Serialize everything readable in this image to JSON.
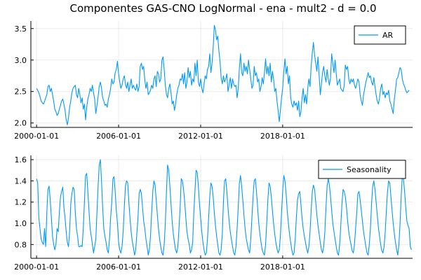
{
  "chart_data": [
    {
      "type": "line",
      "title": "Componentes GAS-CNO LogNormal - ena - mult2 - d = 0.0",
      "xlabel": "",
      "ylabel": "",
      "x_start": "2000-01",
      "frequency": "monthly",
      "xticks": [
        "2000-01-01",
        "2006-01-01",
        "2012-01-01",
        "2018-01-01"
      ],
      "yticks": [
        2.0,
        2.5,
        3.0,
        3.5
      ],
      "ytick_labels": [
        "2.0",
        "2.5",
        "3.0",
        "3.5"
      ],
      "ylim": [
        1.93,
        3.62
      ],
      "grid": true,
      "legend_position": "top-right",
      "series": [
        {
          "name": "AR",
          "color": "#009AFA",
          "values": [
            2.55,
            2.52,
            2.48,
            2.42,
            2.35,
            2.32,
            2.3,
            2.34,
            2.4,
            2.45,
            2.58,
            2.6,
            2.5,
            2.55,
            2.45,
            2.35,
            2.22,
            2.18,
            2.12,
            2.15,
            2.22,
            2.28,
            2.35,
            2.38,
            2.3,
            2.2,
            2.05,
            1.97,
            2.08,
            2.25,
            2.35,
            2.48,
            2.55,
            2.58,
            2.6,
            2.45,
            2.4,
            2.55,
            2.45,
            2.32,
            2.4,
            2.22,
            2.3,
            2.05,
            2.25,
            2.38,
            2.45,
            2.55,
            2.5,
            2.6,
            2.48,
            2.38,
            2.15,
            2.28,
            2.42,
            2.58,
            2.65,
            2.55,
            2.4,
            2.35,
            2.28,
            2.3,
            2.25,
            2.38,
            2.45,
            2.55,
            2.7,
            2.62,
            2.65,
            2.8,
            2.85,
            2.98,
            2.78,
            2.65,
            2.55,
            2.6,
            2.7,
            2.75,
            2.62,
            2.55,
            2.65,
            2.5,
            2.6,
            2.7,
            2.55,
            2.6,
            2.55,
            2.52,
            2.62,
            2.5,
            2.58,
            2.9,
            2.95,
            2.85,
            2.9,
            2.68,
            2.55,
            2.65,
            2.45,
            2.48,
            2.52,
            2.6,
            2.55,
            2.7,
            2.75,
            2.58,
            2.82,
            2.78,
            2.65,
            2.7,
            3.0,
            3.05,
            2.85,
            2.6,
            2.45,
            2.4,
            2.55,
            2.62,
            2.48,
            2.3,
            2.35,
            2.2,
            2.3,
            2.45,
            2.55,
            2.6,
            2.7,
            2.68,
            2.78,
            2.62,
            2.8,
            2.55,
            2.65,
            2.88,
            2.72,
            2.82,
            2.6,
            2.7,
            2.65,
            2.95,
            2.75,
            3.0,
            2.65,
            2.58,
            2.7,
            2.55,
            2.48,
            2.62,
            2.75,
            2.7,
            2.85,
            2.9,
            3.1,
            2.8,
            2.95,
            3.2,
            3.55,
            3.48,
            3.32,
            3.38,
            3.15,
            2.98,
            2.72,
            2.62,
            2.75,
            2.65,
            2.7,
            2.78,
            2.5,
            2.6,
            2.72,
            2.55,
            2.7,
            2.62,
            2.58,
            2.6,
            2.4,
            2.55,
            2.88,
            3.1,
            2.8,
            2.75,
            2.95,
            2.82,
            2.9,
            2.78,
            3.0,
            2.85,
            2.7,
            2.55,
            2.6,
            2.9,
            2.75,
            2.8,
            2.65,
            2.7,
            2.5,
            2.58,
            2.72,
            2.62,
            2.8,
            3.02,
            2.78,
            2.9,
            2.75,
            2.95,
            2.65,
            2.82,
            2.7,
            2.5,
            2.55,
            2.35,
            2.2,
            2.02,
            2.2,
            2.4,
            2.55,
            2.82,
            3.02,
            2.78,
            2.9,
            2.62,
            2.75,
            2.4,
            2.3,
            2.25,
            2.35,
            2.28,
            2.32,
            2.2,
            2.35,
            2.1,
            2.18,
            2.4,
            2.55,
            2.32,
            2.45,
            2.3,
            2.55,
            2.7,
            2.58,
            2.9,
            3.12,
            3.28,
            3.08,
            2.95,
            2.82,
            3.05,
            2.75,
            2.45,
            2.62,
            2.8,
            2.9,
            2.75,
            2.65,
            2.85,
            2.7,
            2.6,
            2.72,
            3.1,
            2.95,
            2.8,
            3.0,
            2.78,
            2.6,
            2.65,
            2.7,
            2.55,
            2.52,
            2.5,
            2.6,
            2.92,
            2.85,
            2.9,
            2.7,
            2.62,
            2.7,
            2.65,
            2.7,
            2.6,
            2.55,
            2.62,
            2.7,
            2.65,
            2.45,
            2.35,
            2.28,
            2.45,
            2.55,
            2.65,
            2.72,
            2.8,
            2.72,
            2.75,
            2.65,
            2.6,
            2.72,
            2.58,
            2.45,
            2.35,
            2.3,
            2.4,
            2.55,
            2.62,
            2.45,
            2.5,
            2.4,
            2.48,
            2.45,
            2.52,
            2.35,
            2.3,
            2.22,
            2.15,
            2.38,
            2.52,
            2.7,
            2.72,
            2.8,
            2.88,
            2.85,
            2.7,
            2.62,
            2.58,
            2.52,
            2.48,
            2.5,
            2.52
          ]
        }
      ]
    },
    {
      "type": "line",
      "title": "",
      "xlabel": "",
      "ylabel": "",
      "x_start": "2000-01",
      "frequency": "monthly",
      "xticks": [
        "2000-01-01",
        "2006-01-01",
        "2012-01-01",
        "2018-01-01"
      ],
      "yticks": [
        0.8,
        1.0,
        1.2,
        1.4,
        1.6
      ],
      "ytick_labels": [
        "0.8",
        "1.0",
        "1.2",
        "1.4",
        "1.6"
      ],
      "ylim": [
        0.67,
        1.64
      ],
      "grid": true,
      "legend_position": "top-right",
      "series": [
        {
          "name": "Seasonality",
          "color": "#009AFA",
          "values": [
            1.42,
            1.38,
            1.05,
            0.95,
            0.85,
            0.82,
            0.8,
            0.95,
            0.78,
            1.1,
            1.32,
            1.35,
            1.22,
            1.05,
            0.88,
            0.8,
            0.75,
            0.8,
            0.95,
            0.92,
            1.1,
            1.25,
            1.3,
            1.34,
            1.15,
            1.05,
            0.92,
            0.82,
            0.78,
            0.92,
            1.18,
            1.28,
            1.34,
            1.32,
            1.1,
            0.95,
            0.88,
            0.78,
            0.78,
            0.79,
            0.78,
            0.95,
            1.2,
            1.45,
            1.47,
            1.3,
            1.12,
            0.95,
            0.88,
            0.8,
            0.72,
            0.78,
            0.85,
            1.1,
            1.35,
            1.55,
            1.6,
            1.4,
            1.15,
            0.95,
            0.88,
            0.82,
            0.75,
            0.72,
            0.85,
            1.05,
            1.2,
            1.42,
            1.44,
            1.3,
            1.12,
            1.0,
            0.82,
            0.75,
            0.72,
            0.78,
            0.92,
            1.15,
            1.35,
            1.4,
            1.38,
            1.2,
            1.05,
            0.92,
            0.83,
            0.77,
            0.7,
            0.75,
            0.9,
            1.05,
            1.28,
            1.32,
            1.28,
            1.15,
            1.02,
            0.95,
            0.85,
            0.78,
            0.7,
            0.75,
            0.88,
            1.1,
            1.3,
            1.4,
            1.36,
            1.22,
            1.08,
            0.95,
            0.85,
            0.78,
            0.72,
            0.7,
            0.8,
            1.0,
            1.3,
            1.55,
            1.5,
            1.35,
            1.18,
            1.02,
            0.9,
            0.82,
            0.75,
            0.72,
            0.78,
            0.95,
            1.15,
            1.42,
            1.4,
            1.32,
            1.2,
            1.05,
            0.92,
            0.85,
            0.8,
            0.72,
            0.75,
            0.82,
            1.1,
            1.3,
            1.5,
            1.48,
            1.35,
            1.18,
            1.05,
            0.92,
            0.82,
            0.75,
            0.7,
            0.72,
            0.85,
            1.05,
            1.25,
            1.38,
            1.35,
            1.25,
            1.1,
            0.98,
            0.88,
            0.8,
            0.72,
            0.7,
            0.75,
            0.9,
            1.2,
            1.4,
            1.42,
            1.3,
            1.15,
            1.02,
            0.92,
            0.85,
            0.78,
            0.72,
            0.7,
            0.78,
            0.95,
            1.15,
            1.38,
            1.45,
            1.35,
            1.22,
            1.08,
            0.95,
            0.86,
            0.8,
            0.75,
            0.72,
            0.85,
            1.05,
            1.25,
            1.4,
            1.42,
            1.3,
            1.15,
            1.0,
            0.9,
            0.82,
            0.75,
            0.72,
            0.7,
            0.8,
            1.0,
            1.22,
            1.38,
            1.35,
            1.25,
            1.12,
            1.0,
            0.9,
            0.82,
            0.76,
            0.72,
            0.75,
            0.88,
            1.1,
            1.3,
            1.45,
            1.4,
            1.28,
            1.12,
            1.0,
            0.9,
            0.82,
            0.75,
            0.7,
            0.72,
            0.85,
            1.05,
            1.22,
            1.28,
            1.3,
            1.18,
            1.05,
            0.95,
            0.88,
            0.82,
            0.76,
            0.72,
            0.78,
            0.92,
            1.12,
            1.3,
            1.36,
            1.32,
            1.2,
            1.08,
            0.98,
            0.9,
            0.82,
            0.75,
            0.72,
            0.78,
            0.92,
            1.15,
            1.35,
            1.42,
            1.36,
            1.25,
            1.12,
            1.0,
            0.92,
            0.85,
            0.78,
            0.72,
            0.7,
            0.8,
            0.98,
            1.18,
            1.32,
            1.3,
            1.25,
            1.15,
            1.02,
            0.92,
            0.85,
            0.8,
            0.74,
            0.72,
            0.8,
            0.95,
            1.1,
            1.28,
            1.3,
            1.22,
            1.12,
            1.02,
            0.92,
            0.85,
            0.78,
            0.72,
            0.7,
            0.8,
            0.95,
            1.18,
            1.35,
            1.4,
            1.32,
            1.2,
            1.08,
            0.96,
            0.88,
            0.8,
            0.74,
            0.72,
            0.78,
            0.92,
            1.12,
            1.3,
            1.4,
            1.38,
            1.25,
            1.12,
            1.0,
            0.9,
            0.82,
            0.75,
            0.7,
            0.8,
            1.0,
            1.25,
            1.45,
            1.42,
            1.3,
            1.15,
            1.02,
            0.98,
            0.95,
            0.78,
            0.75
          ]
        }
      ]
    }
  ]
}
